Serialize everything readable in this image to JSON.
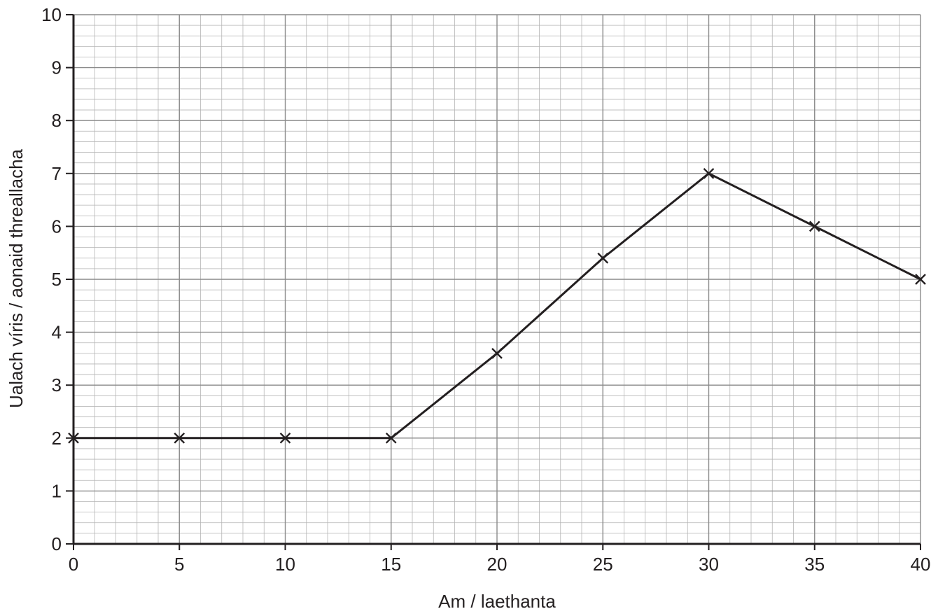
{
  "chart_data": {
    "type": "line",
    "title": "",
    "xlabel": "Am / laethanta",
    "ylabel": "Ualach víris / aonaid threallacha",
    "xlim": [
      0,
      40
    ],
    "ylim": [
      0,
      10
    ],
    "x_ticks": [
      "0",
      "5",
      "10",
      "15",
      "20",
      "25",
      "30",
      "35",
      "40"
    ],
    "y_ticks": [
      "0",
      "1",
      "2",
      "3",
      "4",
      "5",
      "6",
      "7",
      "8",
      "9",
      "10"
    ],
    "grid": true,
    "marker": "cross",
    "series": [
      {
        "x": [
          0,
          5,
          10,
          15,
          20,
          25,
          30,
          35,
          40
        ],
        "y": [
          2,
          2,
          2,
          2,
          3.6,
          5.4,
          7.0,
          6.0,
          5.0
        ]
      }
    ],
    "colors": {
      "line": "#231f20",
      "grid_major": "#8a8a8a",
      "grid_minor": "#b5b5b5",
      "axis": "#231f20"
    }
  }
}
